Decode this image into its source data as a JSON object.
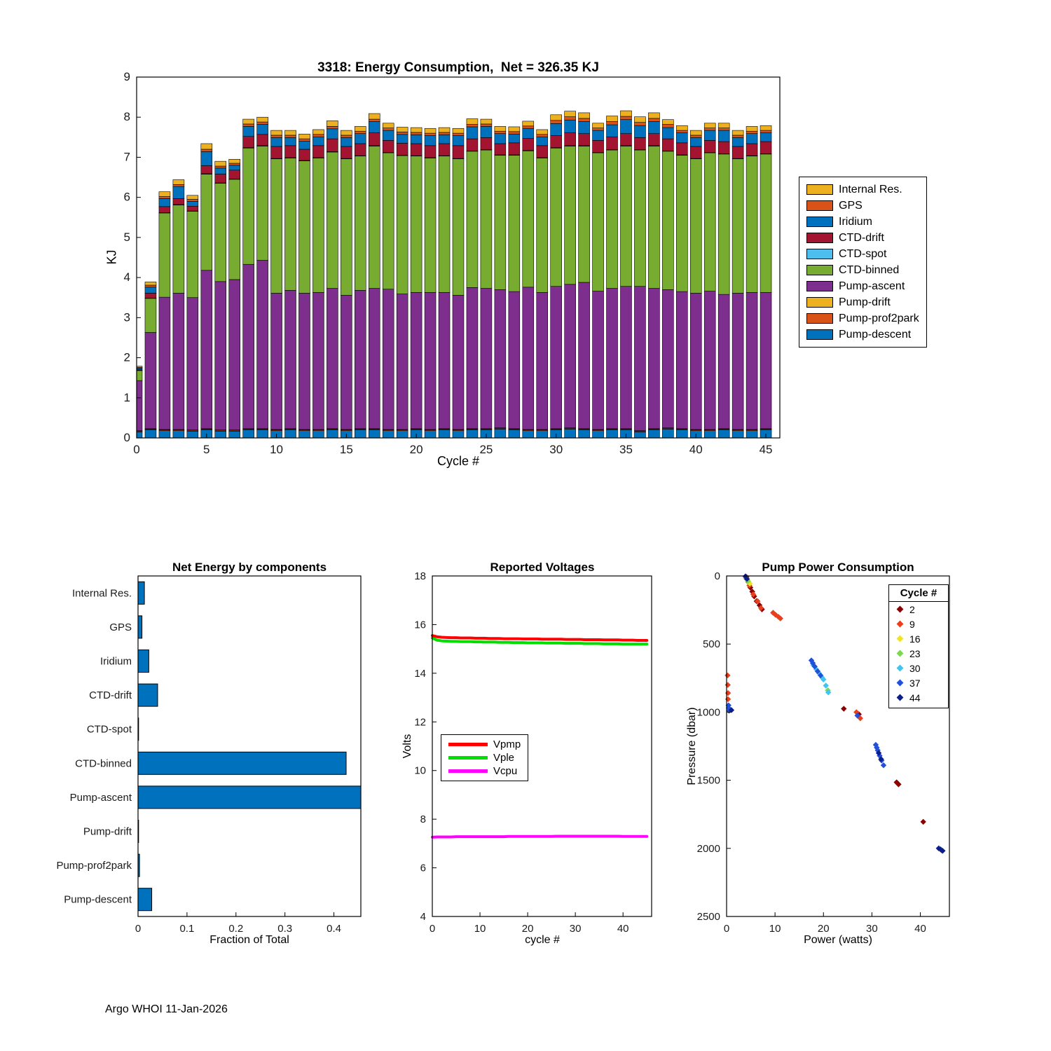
{
  "figure": {
    "footer": "Argo WHOI 11-Jan-2026"
  },
  "chart_data": {
    "note": "four panels; see energy_chart, net_energy_chart, voltage_chart, pump_chart"
  },
  "energy_chart": {
    "type": "bar",
    "stacked": true,
    "title": "3318: Energy Consumption,  Net = 326.35 KJ",
    "xlabel": "Cycle #",
    "ylabel": "KJ",
    "xlim": [
      0,
      46
    ],
    "ylim": [
      0,
      9
    ],
    "xticks": [
      0,
      5,
      10,
      15,
      20,
      25,
      30,
      35,
      40,
      45
    ],
    "yticks": [
      0,
      1,
      2,
      3,
      4,
      5,
      6,
      7,
      8,
      9
    ],
    "legend_position": "right-outside",
    "series": [
      {
        "name": "Pump-descent",
        "color": "#0072BD",
        "values": [
          0.15,
          0.2,
          0.18,
          0.18,
          0.17,
          0.2,
          0.17,
          0.17,
          0.2,
          0.2,
          0.18,
          0.2,
          0.18,
          0.18,
          0.2,
          0.18,
          0.2,
          0.2,
          0.18,
          0.18,
          0.2,
          0.18,
          0.2,
          0.18,
          0.2,
          0.2,
          0.22,
          0.2,
          0.18,
          0.18,
          0.2,
          0.22,
          0.2,
          0.18,
          0.2,
          0.2,
          0.15,
          0.2,
          0.22,
          0.2,
          0.18,
          0.18,
          0.2,
          0.18,
          0.18,
          0.2
        ]
      },
      {
        "name": "Pump-prof2park",
        "color": "#D95319",
        "values": [
          0.02,
          0.02,
          0.02,
          0.02,
          0.02,
          0.02,
          0.02,
          0.02,
          0.02,
          0.02,
          0.02,
          0.02,
          0.02,
          0.02,
          0.02,
          0.02,
          0.02,
          0.02,
          0.02,
          0.02,
          0.02,
          0.02,
          0.02,
          0.02,
          0.02,
          0.02,
          0.02,
          0.02,
          0.02,
          0.02,
          0.02,
          0.02,
          0.02,
          0.02,
          0.02,
          0.02,
          0.02,
          0.02,
          0.02,
          0.02,
          0.02,
          0.02,
          0.02,
          0.02,
          0.02,
          0.02
        ]
      },
      {
        "name": "Pump-drift",
        "color": "#EDB120",
        "values": [
          0.01,
          0.01,
          0.01,
          0.01,
          0.01,
          0.01,
          0.01,
          0.01,
          0.01,
          0.01,
          0.01,
          0.01,
          0.01,
          0.01,
          0.01,
          0.01,
          0.01,
          0.01,
          0.01,
          0.01,
          0.01,
          0.01,
          0.01,
          0.01,
          0.01,
          0.01,
          0.01,
          0.01,
          0.01,
          0.01,
          0.01,
          0.01,
          0.01,
          0.01,
          0.01,
          0.01,
          0.01,
          0.01,
          0.01,
          0.01,
          0.01,
          0.01,
          0.01,
          0.01,
          0.01,
          0.01
        ]
      },
      {
        "name": "Pump-ascent",
        "color": "#7E2F8E",
        "values": [
          1.25,
          2.4,
          3.3,
          3.4,
          3.3,
          3.95,
          3.7,
          3.75,
          4.1,
          4.2,
          3.4,
          3.45,
          3.4,
          3.42,
          3.5,
          3.35,
          3.45,
          3.5,
          3.5,
          3.38,
          3.4,
          3.42,
          3.4,
          3.35,
          3.52,
          3.5,
          3.45,
          3.42,
          3.55,
          3.42,
          3.55,
          3.58,
          3.65,
          3.45,
          3.5,
          3.55,
          3.6,
          3.5,
          3.45,
          3.42,
          3.4,
          3.45,
          3.35,
          3.4,
          3.42,
          3.4
        ]
      },
      {
        "name": "CTD-binned",
        "color": "#77AC30",
        "values": [
          0.25,
          0.85,
          2.1,
          2.2,
          2.15,
          2.4,
          2.45,
          2.5,
          2.9,
          2.85,
          3.35,
          3.3,
          3.3,
          3.35,
          3.4,
          3.4,
          3.35,
          3.55,
          3.4,
          3.45,
          3.4,
          3.35,
          3.4,
          3.4,
          3.4,
          3.45,
          3.35,
          3.4,
          3.4,
          3.35,
          3.45,
          3.45,
          3.4,
          3.45,
          3.45,
          3.5,
          3.4,
          3.55,
          3.45,
          3.4,
          3.35,
          3.45,
          3.5,
          3.35,
          3.4,
          3.45
        ]
      },
      {
        "name": "CTD-spot",
        "color": "#4DBEEE",
        "values": [
          0.01,
          0.01,
          0.01,
          0.01,
          0.01,
          0.01,
          0.01,
          0.01,
          0.01,
          0.01,
          0.01,
          0.01,
          0.01,
          0.01,
          0.01,
          0.01,
          0.01,
          0.01,
          0.01,
          0.01,
          0.01,
          0.01,
          0.01,
          0.01,
          0.01,
          0.01,
          0.01,
          0.01,
          0.01,
          0.01,
          0.01,
          0.01,
          0.01,
          0.01,
          0.01,
          0.01,
          0.01,
          0.01,
          0.01,
          0.01,
          0.01,
          0.01,
          0.01,
          0.01,
          0.01,
          0.01
        ]
      },
      {
        "name": "CTD-drift",
        "color": "#A2142F",
        "values": [
          0.02,
          0.12,
          0.15,
          0.15,
          0.12,
          0.2,
          0.22,
          0.22,
          0.28,
          0.28,
          0.3,
          0.3,
          0.28,
          0.3,
          0.32,
          0.3,
          0.3,
          0.32,
          0.3,
          0.3,
          0.3,
          0.3,
          0.3,
          0.32,
          0.3,
          0.3,
          0.28,
          0.3,
          0.3,
          0.3,
          0.3,
          0.32,
          0.3,
          0.3,
          0.32,
          0.3,
          0.3,
          0.3,
          0.3,
          0.3,
          0.3,
          0.3,
          0.3,
          0.3,
          0.3,
          0.3
        ]
      },
      {
        "name": "Iridium",
        "color": "#0072BD",
        "values": [
          0.03,
          0.15,
          0.2,
          0.3,
          0.12,
          0.35,
          0.15,
          0.12,
          0.25,
          0.25,
          0.22,
          0.2,
          0.2,
          0.22,
          0.25,
          0.22,
          0.25,
          0.28,
          0.25,
          0.22,
          0.22,
          0.25,
          0.22,
          0.25,
          0.3,
          0.28,
          0.25,
          0.22,
          0.25,
          0.22,
          0.3,
          0.32,
          0.3,
          0.25,
          0.3,
          0.35,
          0.3,
          0.3,
          0.28,
          0.25,
          0.22,
          0.25,
          0.28,
          0.22,
          0.25,
          0.22
        ]
      },
      {
        "name": "GPS",
        "color": "#D95319",
        "values": [
          0.02,
          0.05,
          0.05,
          0.05,
          0.05,
          0.06,
          0.05,
          0.05,
          0.06,
          0.06,
          0.06,
          0.06,
          0.06,
          0.06,
          0.06,
          0.06,
          0.06,
          0.06,
          0.06,
          0.06,
          0.06,
          0.06,
          0.06,
          0.06,
          0.06,
          0.06,
          0.06,
          0.06,
          0.06,
          0.06,
          0.08,
          0.08,
          0.08,
          0.06,
          0.08,
          0.08,
          0.08,
          0.08,
          0.08,
          0.06,
          0.06,
          0.06,
          0.06,
          0.06,
          0.06,
          0.06
        ]
      },
      {
        "name": "Internal Res.",
        "color": "#EDB120",
        "values": [
          0.03,
          0.08,
          0.12,
          0.12,
          0.1,
          0.14,
          0.12,
          0.1,
          0.12,
          0.12,
          0.12,
          0.12,
          0.12,
          0.12,
          0.14,
          0.12,
          0.12,
          0.14,
          0.12,
          0.12,
          0.12,
          0.12,
          0.12,
          0.12,
          0.14,
          0.12,
          0.12,
          0.12,
          0.12,
          0.12,
          0.14,
          0.14,
          0.14,
          0.12,
          0.14,
          0.14,
          0.14,
          0.14,
          0.12,
          0.12,
          0.12,
          0.12,
          0.12,
          0.12,
          0.12,
          0.12
        ]
      }
    ]
  },
  "net_energy_chart": {
    "type": "bar",
    "orientation": "horizontal",
    "title": "Net Energy by components",
    "xlabel": "Fraction of Total",
    "xlim": [
      0,
      0.455
    ],
    "xticks": [
      0,
      0.1,
      0.2,
      0.3,
      0.4
    ],
    "bar_color": "#0072BD",
    "categories": [
      "Internal Res.",
      "GPS",
      "Iridium",
      "CTD-drift",
      "CTD-spot",
      "CTD-binned",
      "Pump-ascent",
      "Pump-drift",
      "Pump-prof2park",
      "Pump-descent"
    ],
    "values": [
      0.013,
      0.008,
      0.022,
      0.04,
      0.001,
      0.425,
      0.455,
      0.001,
      0.003,
      0.028
    ]
  },
  "voltage_chart": {
    "type": "line",
    "title": "Reported Voltages",
    "xlabel": "cycle #",
    "ylabel": "Volts",
    "xlim": [
      0,
      46
    ],
    "ylim": [
      4,
      18
    ],
    "xticks": [
      0,
      10,
      20,
      30,
      40
    ],
    "yticks": [
      4,
      6,
      8,
      10,
      12,
      14,
      16,
      18
    ],
    "series": [
      {
        "name": "Vpmp",
        "color": "#FF0000",
        "values": [
          15.55,
          15.5,
          15.48,
          15.47,
          15.46,
          15.46,
          15.45,
          15.45,
          15.45,
          15.44,
          15.44,
          15.44,
          15.43,
          15.43,
          15.43,
          15.42,
          15.42,
          15.42,
          15.42,
          15.41,
          15.41,
          15.41,
          15.41,
          15.4,
          15.4,
          15.4,
          15.4,
          15.4,
          15.39,
          15.39,
          15.39,
          15.39,
          15.38,
          15.38,
          15.38,
          15.38,
          15.37,
          15.37,
          15.37,
          15.37,
          15.36,
          15.36,
          15.36,
          15.35,
          15.35,
          15.35
        ]
      },
      {
        "name": "Vple",
        "color": "#00DF00",
        "values": [
          15.45,
          15.36,
          15.33,
          15.32,
          15.31,
          15.31,
          15.3,
          15.3,
          15.3,
          15.29,
          15.29,
          15.28,
          15.28,
          15.28,
          15.27,
          15.27,
          15.27,
          15.26,
          15.26,
          15.26,
          15.25,
          15.25,
          15.25,
          15.25,
          15.24,
          15.24,
          15.24,
          15.24,
          15.23,
          15.23,
          15.23,
          15.23,
          15.22,
          15.22,
          15.22,
          15.22,
          15.21,
          15.21,
          15.21,
          15.21,
          15.2,
          15.2,
          15.2,
          15.2,
          15.2,
          15.2
        ]
      },
      {
        "name": "Vcpu",
        "color": "#FF00FF",
        "values": [
          7.26,
          7.27,
          7.27,
          7.27,
          7.27,
          7.28,
          7.28,
          7.28,
          7.28,
          7.28,
          7.28,
          7.28,
          7.28,
          7.28,
          7.28,
          7.28,
          7.29,
          7.29,
          7.29,
          7.29,
          7.29,
          7.29,
          7.29,
          7.29,
          7.29,
          7.29,
          7.3,
          7.3,
          7.3,
          7.3,
          7.3,
          7.3,
          7.3,
          7.3,
          7.3,
          7.3,
          7.3,
          7.3,
          7.3,
          7.3,
          7.29,
          7.29,
          7.29,
          7.29,
          7.29,
          7.29
        ]
      }
    ]
  },
  "pump_chart": {
    "type": "scatter",
    "title": "Pump Power Consumption",
    "xlabel": "Power (watts)",
    "ylabel": "Pressure (dbar)",
    "xlim": [
      0,
      46
    ],
    "ylim": [
      0,
      2500
    ],
    "y_inverted": true,
    "xticks": [
      0,
      10,
      20,
      30,
      40
    ],
    "yticks": [
      0,
      500,
      1000,
      1500,
      2000,
      2500
    ],
    "legend_title": "Cycle #",
    "groups": [
      {
        "cycle": 2,
        "color": "#8B0000",
        "points": [
          [
            4.1,
            8
          ],
          [
            4.5,
            45
          ],
          [
            4.9,
            85
          ],
          [
            5.3,
            115
          ],
          [
            5.7,
            150
          ],
          [
            6.2,
            185
          ],
          [
            6.8,
            215
          ],
          [
            7.3,
            245
          ],
          [
            24.2,
            975
          ],
          [
            27.3,
            1015
          ],
          [
            35.1,
            1515
          ],
          [
            35.5,
            1530
          ],
          [
            40.6,
            1805
          ]
        ]
      },
      {
        "cycle": 9,
        "color": "#E8401C",
        "points": [
          [
            4.0,
            12
          ],
          [
            4.7,
            70
          ],
          [
            5.5,
            135
          ],
          [
            6.4,
            185
          ],
          [
            7.1,
            235
          ],
          [
            9.6,
            270
          ],
          [
            10.1,
            285
          ],
          [
            10.7,
            300
          ],
          [
            11.1,
            312
          ],
          [
            0.2,
            730
          ],
          [
            0.25,
            800
          ],
          [
            0.3,
            860
          ],
          [
            0.3,
            905
          ],
          [
            26.8,
            1000
          ],
          [
            27.6,
            1045
          ],
          [
            44.4,
            2015
          ]
        ]
      },
      {
        "cycle": 16,
        "color": "#F2E41E",
        "points": [
          [
            3.9,
            5
          ],
          [
            4.3,
            28
          ],
          [
            4.8,
            55
          ]
        ]
      },
      {
        "cycle": 23,
        "color": "#7CD84F",
        "points": [
          [
            4.0,
            18
          ],
          [
            4.4,
            38
          ],
          [
            20.9,
            840
          ]
        ]
      },
      {
        "cycle": 30,
        "color": "#3EC5F2",
        "points": [
          [
            17.9,
            655
          ],
          [
            18.5,
            685
          ],
          [
            19.1,
            715
          ],
          [
            19.7,
            745
          ],
          [
            20.0,
            760
          ],
          [
            20.5,
            805
          ],
          [
            21.0,
            855
          ]
        ]
      },
      {
        "cycle": 37,
        "color": "#2150D9",
        "points": [
          [
            17.5,
            620
          ],
          [
            17.8,
            640
          ],
          [
            18.2,
            665
          ],
          [
            18.8,
            700
          ],
          [
            19.4,
            730
          ],
          [
            0.4,
            950
          ],
          [
            0.45,
            970
          ],
          [
            0.5,
            990
          ],
          [
            27.0,
            1025
          ],
          [
            30.8,
            1240
          ],
          [
            31.0,
            1260
          ],
          [
            31.2,
            1280
          ],
          [
            31.6,
            1320
          ],
          [
            32.0,
            1355
          ],
          [
            32.4,
            1390
          ]
        ]
      },
      {
        "cycle": 44,
        "color": "#0B1F8C",
        "points": [
          [
            3.9,
            3
          ],
          [
            4.2,
            22
          ],
          [
            1.0,
            985
          ],
          [
            31.4,
            1300
          ],
          [
            31.9,
            1345
          ],
          [
            43.8,
            2000
          ],
          [
            44.2,
            2008
          ],
          [
            44.6,
            2018
          ]
        ]
      }
    ]
  }
}
